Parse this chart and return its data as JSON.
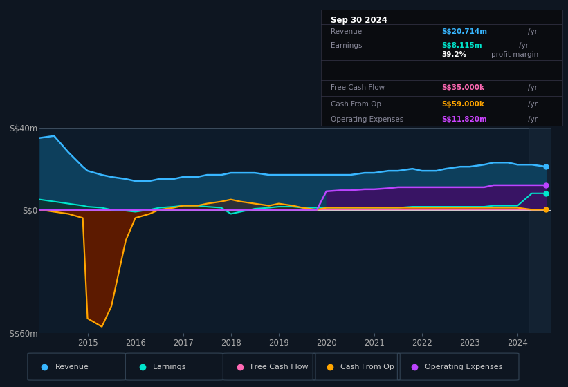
{
  "bg_color": "#0e1621",
  "plot_bg_color": "#0d1b2a",
  "title_box": {
    "date": "Sep 30 2024",
    "rows": [
      {
        "label": "Revenue",
        "value": "S$20.714m",
        "unit": "/yr",
        "value_color": "#38b6ff"
      },
      {
        "label": "Earnings",
        "value": "S$8.115m",
        "unit": "/yr",
        "value_color": "#00e5cc"
      },
      {
        "label": "",
        "value": "39.2%",
        "unit": "profit margin",
        "value_color": "#ffffff"
      },
      {
        "label": "Free Cash Flow",
        "value": "S$35.000k",
        "unit": "/yr",
        "value_color": "#ff69b4"
      },
      {
        "label": "Cash From Op",
        "value": "S$59.000k",
        "unit": "/yr",
        "value_color": "#ffa500"
      },
      {
        "label": "Operating Expenses",
        "value": "S$11.820m",
        "unit": "/yr",
        "value_color": "#cc44ff"
      }
    ]
  },
  "years": [
    2014.0,
    2014.3,
    2014.6,
    2014.9,
    2015.0,
    2015.3,
    2015.5,
    2015.8,
    2016.0,
    2016.3,
    2016.5,
    2016.8,
    2017.0,
    2017.3,
    2017.5,
    2017.8,
    2018.0,
    2018.2,
    2018.5,
    2018.8,
    2019.0,
    2019.3,
    2019.5,
    2019.8,
    2020.0,
    2020.3,
    2020.5,
    2020.8,
    2021.0,
    2021.3,
    2021.5,
    2021.8,
    2022.0,
    2022.3,
    2022.5,
    2022.8,
    2023.0,
    2023.3,
    2023.5,
    2023.8,
    2024.0,
    2024.3,
    2024.6
  ],
  "revenue": [
    35,
    36,
    28,
    21,
    19,
    17,
    16,
    15,
    14,
    14,
    15,
    15,
    16,
    16,
    17,
    17,
    18,
    18,
    18,
    17,
    17,
    17,
    17,
    17,
    17,
    17,
    17,
    18,
    18,
    19,
    19,
    20,
    19,
    19,
    20,
    21,
    21,
    22,
    23,
    23,
    22,
    22,
    21
  ],
  "earnings": [
    5,
    4,
    3,
    2,
    1.5,
    1,
    0,
    -0.5,
    -1,
    0,
    1,
    1.5,
    2,
    2,
    1.5,
    1,
    -2,
    -1,
    0.5,
    1,
    1.5,
    1.5,
    1,
    1,
    1,
    1,
    1,
    1,
    1,
    1,
    1,
    1.5,
    1.5,
    1.5,
    1.5,
    1.5,
    1.5,
    1.5,
    2,
    2,
    2,
    8,
    8
  ],
  "free_cash_flow": [
    0.2,
    0.2,
    0.1,
    0.1,
    0.1,
    0.1,
    0.1,
    0.1,
    0.1,
    0.1,
    0.1,
    0.1,
    0.1,
    0.1,
    0.1,
    0.1,
    0.1,
    0.1,
    0.1,
    0.1,
    0.1,
    0.1,
    0.1,
    0.1,
    0.1,
    0.1,
    0.1,
    0.1,
    0.1,
    0.1,
    0.1,
    0.1,
    0.1,
    0.1,
    0.1,
    0.1,
    0.1,
    0.1,
    0.1,
    0.1,
    0.1,
    0.035,
    0.035
  ],
  "cash_from_op": [
    0,
    -1,
    -2,
    -4,
    -53,
    -57,
    -47,
    -15,
    -4,
    -2,
    0,
    1,
    2,
    2,
    3,
    4,
    5,
    4,
    3,
    2,
    3,
    2,
    1,
    0,
    1,
    1,
    1,
    1,
    1,
    1,
    1,
    1,
    1,
    1,
    1,
    1,
    1,
    1,
    1,
    1,
    1,
    0.059,
    0.059
  ],
  "operating_expenses": [
    0,
    0,
    0,
    0,
    0,
    0,
    0,
    0,
    0,
    0,
    0,
    0,
    0,
    0,
    0,
    0,
    0,
    0,
    0,
    0,
    0,
    0,
    0,
    0,
    9,
    9.5,
    9.5,
    10,
    10,
    10.5,
    11,
    11,
    11,
    11,
    11,
    11,
    11,
    11,
    12,
    12,
    12,
    12,
    12
  ],
  "revenue_color": "#38b6ff",
  "earnings_color": "#00e5cc",
  "free_cash_flow_color": "#ff69b4",
  "cash_from_op_color": "#ffa500",
  "operating_expenses_color": "#bb44ff",
  "revenue_fill_color": "#0d3f5c",
  "earnings_fill_color": "#0d3535",
  "cash_from_op_neg_fill": "#5c1a00",
  "operating_expenses_fill_color": "#3d1066",
  "ylim": [
    -60,
    40
  ],
  "yticks": [
    -60,
    0,
    40
  ],
  "ytick_labels": [
    "-S$60m",
    "S$0",
    "S$40m"
  ],
  "xtick_years": [
    2015,
    2016,
    2017,
    2018,
    2019,
    2020,
    2021,
    2022,
    2023,
    2024
  ],
  "legend_items": [
    {
      "label": "Revenue",
      "color": "#38b6ff"
    },
    {
      "label": "Earnings",
      "color": "#00e5cc"
    },
    {
      "label": "Free Cash Flow",
      "color": "#ff69b4"
    },
    {
      "label": "Cash From Op",
      "color": "#ffa500"
    },
    {
      "label": "Operating Expenses",
      "color": "#bb44ff"
    }
  ]
}
